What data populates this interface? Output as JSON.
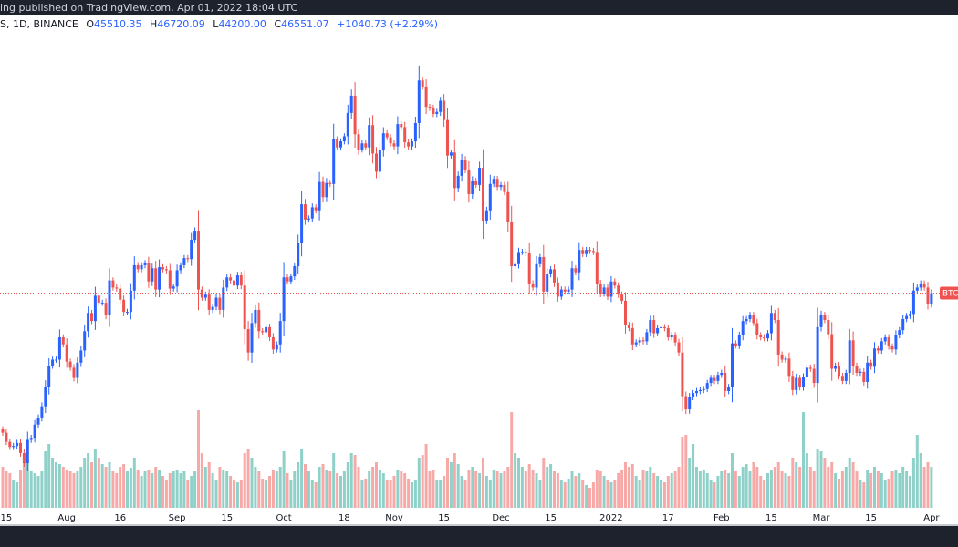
{
  "header": {
    "published_text": "ing published on TradingView.com, Apr 01, 2022 18:04 UTC"
  },
  "legend": {
    "symbol": "S, 1D, BINANCE",
    "open_label": "O",
    "open": "45510.35",
    "high_label": "H",
    "high": "46720.09",
    "low_label": "L",
    "low": "44200.00",
    "close_label": "C",
    "close": "46551.07",
    "change": "+1040.73 (+2.29%)"
  },
  "price_label": "BTC",
  "colors": {
    "up": "#2962ff",
    "down": "#ef5350",
    "vol_up": "#8fd1c9",
    "vol_down": "#f7a9a7",
    "topbar": "#1e222d"
  },
  "chart_data": {
    "type": "candlestick",
    "interval": "1D",
    "first_date": "2021-07-14",
    "last_price": 46551.07,
    "closes": [
      32800,
      31900,
      31400,
      31500,
      31800,
      30800,
      29800,
      32100,
      32300,
      33600,
      34300,
      35400,
      37300,
      39400,
      40000,
      40000,
      42200,
      41500,
      39800,
      39200,
      38200,
      39700,
      40900,
      42800,
      44600,
      43800,
      46300,
      45600,
      45600,
      44400,
      47800,
      47100,
      47000,
      45900,
      44700,
      44700,
      46800,
      49300,
      48900,
      49300,
      49500,
      47700,
      49000,
      46900,
      49100,
      48900,
      48800,
      47000,
      47200,
      48800,
      49300,
      50000,
      49900,
      51800,
      52700,
      46900,
      46100,
      46400,
      44900,
      45200,
      46100,
      44900,
      47100,
      48100,
      47800,
      47300,
      48300,
      47300,
      43000,
      40700,
      43600,
      44900,
      42800,
      42700,
      43200,
      42200,
      41000,
      41500,
      43800,
      48100,
      47700,
      48200,
      49200,
      51500,
      55300,
      53800,
      53900,
      55000,
      54700,
      57500,
      56000,
      57400,
      57300,
      61700,
      60900,
      61500,
      62000,
      64300,
      66000,
      62200,
      60700,
      61300,
      60900,
      63100,
      60300,
      58500,
      60600,
      62300,
      61900,
      61300,
      61000,
      63200,
      62900,
      61400,
      61000,
      61500,
      63300,
      67500,
      66900,
      64900,
      64800,
      64200,
      64400,
      65500,
      63600,
      60100,
      60400,
      56900,
      58100,
      59700,
      58700,
      56300,
      57600,
      57200,
      58900,
      53700,
      54700,
      57300,
      57800,
      57000,
      57200,
      56500,
      53600,
      49200,
      49400,
      50600,
      50600,
      50500,
      47500,
      47100,
      49400,
      50100,
      46700,
      48400,
      48900,
      47600,
      46200,
      46900,
      46700,
      46900,
      49000,
      48600,
      50800,
      50400,
      50800,
      50700,
      50600,
      47500,
      46500,
      47100,
      46200,
      47700,
      47300,
      46400,
      45800,
      43400,
      43100,
      41500,
      41700,
      41900,
      41800,
      42700,
      43900,
      42600,
      43100,
      43200,
      43100,
      42200,
      42400,
      41700,
      40700,
      36400,
      35100,
      36300,
      36700,
      36900,
      37000,
      37100,
      37700,
      38200,
      37900,
      38500,
      38700,
      36900,
      37300,
      41600,
      41400,
      42400,
      43800,
      44000,
      44400,
      43600,
      42400,
      42200,
      42100,
      42600,
      44600,
      43900,
      40500,
      40000,
      40100,
      38400,
      37000,
      38200,
      37300,
      38300,
      39200,
      39100,
      37700,
      43200,
      44400,
      43900,
      42500,
      39100,
      39400,
      38400,
      37900,
      38700,
      41900,
      39400,
      38700,
      38800,
      37800,
      39700,
      39300,
      41100,
      40900,
      41800,
      42200,
      41300,
      41000,
      42400,
      42900,
      44000,
      44300,
      44500,
      46800,
      47100,
      47500,
      47100,
      45500,
      46551
    ],
    "volume_relative": [
      45,
      40,
      38,
      30,
      28,
      42,
      50,
      52,
      40,
      38,
      35,
      40,
      62,
      70,
      55,
      50,
      48,
      45,
      42,
      40,
      38,
      40,
      45,
      55,
      60,
      50,
      65,
      55,
      48,
      45,
      50,
      40,
      38,
      45,
      48,
      40,
      44,
      55,
      42,
      35,
      40,
      42,
      38,
      45,
      42,
      35,
      30,
      38,
      40,
      42,
      38,
      40,
      30,
      35,
      40,
      107,
      60,
      45,
      50,
      38,
      30,
      45,
      42,
      40,
      35,
      30,
      28,
      30,
      60,
      65,
      55,
      45,
      40,
      32,
      30,
      35,
      42,
      40,
      45,
      62,
      38,
      30,
      40,
      50,
      65,
      48,
      40,
      30,
      28,
      45,
      48,
      42,
      40,
      60,
      38,
      35,
      40,
      50,
      60,
      58,
      45,
      30,
      32,
      40,
      45,
      50,
      42,
      38,
      30,
      30,
      35,
      42,
      40,
      38,
      32,
      28,
      30,
      55,
      58,
      70,
      40,
      42,
      30,
      30,
      35,
      55,
      50,
      60,
      48,
      35,
      30,
      42,
      45,
      40,
      38,
      55,
      35,
      30,
      42,
      40,
      38,
      40,
      45,
      105,
      60,
      55,
      45,
      40,
      48,
      42,
      38,
      30,
      55,
      45,
      48,
      40,
      38,
      30,
      28,
      32,
      40,
      35,
      38,
      30,
      25,
      22,
      28,
      42,
      40,
      35,
      30,
      28,
      30,
      38,
      42,
      50,
      45,
      48,
      35,
      30,
      42,
      40,
      45,
      38,
      35,
      30,
      28,
      35,
      38,
      40,
      45,
      78,
      80,
      55,
      70,
      45,
      40,
      42,
      38,
      30,
      28,
      35,
      40,
      42,
      38,
      60,
      40,
      35,
      45,
      48,
      40,
      50,
      45,
      35,
      30,
      38,
      42,
      45,
      50,
      40,
      38,
      35,
      55,
      50,
      45,
      105,
      60,
      45,
      40,
      65,
      62,
      55,
      45,
      50,
      38,
      32,
      40,
      45,
      55,
      50,
      40,
      30,
      28,
      42,
      38,
      45,
      40,
      38,
      30,
      32,
      40,
      42,
      38,
      45,
      40,
      35,
      55,
      80,
      60,
      45,
      50,
      45
    ],
    "x_ticks": [
      {
        "label": "15",
        "date": "2021-07-15"
      },
      {
        "label": "Aug",
        "date": "2021-08-01"
      },
      {
        "label": "16",
        "date": "2021-08-16"
      },
      {
        "label": "Sep",
        "date": "2021-09-01"
      },
      {
        "label": "15",
        "date": "2021-09-15"
      },
      {
        "label": "Oct",
        "date": "2021-10-01"
      },
      {
        "label": "18",
        "date": "2021-10-18"
      },
      {
        "label": "Nov",
        "date": "2021-11-01"
      },
      {
        "label": "15",
        "date": "2021-11-15"
      },
      {
        "label": "Dec",
        "date": "2021-12-01"
      },
      {
        "label": "15",
        "date": "2021-12-15"
      },
      {
        "label": "2022",
        "date": "2022-01-01"
      },
      {
        "label": "17",
        "date": "2022-01-17"
      },
      {
        "label": "Feb",
        "date": "2022-02-01"
      },
      {
        "label": "15",
        "date": "2022-02-15"
      },
      {
        "label": "Mar",
        "date": "2022-03-01"
      },
      {
        "label": "15",
        "date": "2022-03-15"
      },
      {
        "label": "Apr",
        "date": "2022-04-01"
      }
    ],
    "ylim": [
      23700,
      72100
    ],
    "grid": false
  }
}
